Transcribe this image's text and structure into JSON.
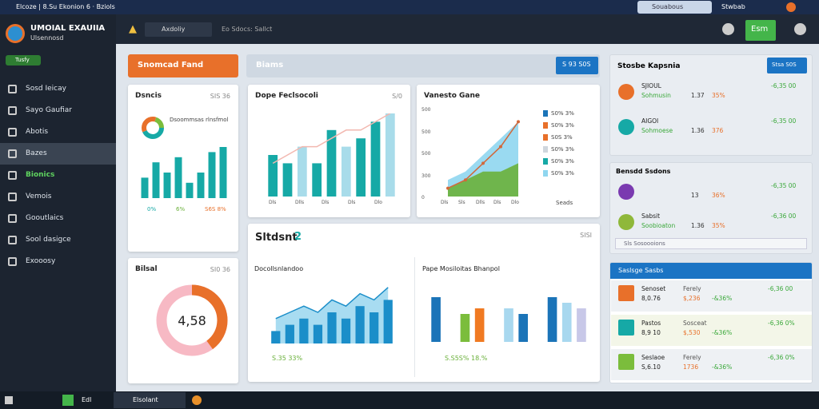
{
  "window": {
    "title": "Elcoze | 8.Su Ekonion 6 · Bziols",
    "search": "Souabous",
    "user": "Stwbab"
  },
  "sidebar": {
    "brand": "UMOIAL EXAUIIA",
    "subtitle": "Ulsennosd",
    "badge": "Tusfy",
    "items": [
      "Sosd Ieicay",
      "Sayo Gaufiar",
      "Abotis",
      "Bazes",
      "Bionics",
      "Vemois",
      "Gooutlaics",
      "Sool dasigce",
      "Exooosy"
    ]
  },
  "toolbar": {
    "field": "Axdoliy",
    "crumb": "Eo Sdocs: Sallct",
    "button": "Esm"
  },
  "header": {
    "primary": "Snomcad Fand",
    "section": "Biams",
    "action": "S 93 S0S"
  },
  "cards": {
    "a": {
      "title": "Dsncis",
      "meta": "SIS 36",
      "note": "Dsoommsas rlnsfmol",
      "legend": [
        "0%",
        "6%",
        "S6S 8%"
      ],
      "chart": {
        "ylim": [
          0,
          10
        ],
        "series": [
          {
            "kind": "bar",
            "color": "#16a9a6",
            "values": [
              4,
              7,
              5,
              8,
              3,
              5,
              9,
              10
            ]
          }
        ]
      }
    },
    "b": {
      "title": "Dope Feclsocoli",
      "meta": "S/0",
      "xlabels": [
        "Dls",
        "Dlls",
        "Dls",
        "Dls",
        "Dlo"
      ],
      "chart": {
        "ylim": [
          0,
          10
        ],
        "series": [
          {
            "kind": "bar",
            "color": "#16a9a6",
            "values": [
              5,
              4,
              6,
              4,
              8,
              6,
              7,
              9,
              10
            ]
          },
          {
            "kind": "line",
            "color": "#f2b8b0",
            "values": [
              4,
              5,
              6,
              6,
              7,
              8,
              8,
              9,
              10
            ]
          }
        ]
      }
    },
    "c": {
      "title": "Vanesto Gane",
      "yticks": [
        "500",
        "500",
        "500",
        "300",
        "0"
      ],
      "xlabels": [
        "Dls",
        "Sls",
        "Dlls",
        "Dls",
        "Dlo"
      ],
      "legend": [
        "S0% 3%",
        "S0% 3%",
        "S0S 3%",
        "S0% 3%",
        "S0% 3%",
        "S0% 3%"
      ],
      "footer": "Seads",
      "chart": {
        "ylim": [
          0,
          10
        ],
        "series": [
          {
            "kind": "area",
            "color": "#8fd6ef",
            "values": [
              2,
              3,
              5,
              7,
              9
            ]
          },
          {
            "kind": "area",
            "color": "#6ab03a",
            "values": [
              1,
              2,
              3,
              3,
              4
            ]
          },
          {
            "kind": "line",
            "color": "#d2683a",
            "values": [
              1,
              2,
              4,
              6,
              9
            ]
          }
        ]
      }
    },
    "d": {
      "title": "Bilsal",
      "meta": "SI0 36",
      "center": "4,58",
      "share": 40
    },
    "e": {
      "title": "Sltdsnt",
      "badge": "2",
      "meta": "SISI",
      "left": {
        "title": "Docollsnlandoo",
        "footer": "S.35 33%",
        "chart": {
          "ylim": [
            0,
            10
          ],
          "series": [
            {
              "kind": "area",
              "color": "#9fd8f0",
              "values": [
                4,
                5,
                6,
                5,
                7,
                6,
                8,
                7,
                9
              ]
            },
            {
              "kind": "bar",
              "color": "#1b8ec9",
              "values": [
                2,
                3,
                4,
                3,
                5,
                4,
                6,
                5,
                7
              ]
            },
            {
              "kind": "line",
              "color": "#1b8ec9",
              "values": [
                4,
                5,
                6,
                5,
                7,
                6,
                8,
                7,
                9
              ]
            }
          ]
        }
      },
      "right": {
        "title": "Pape Mosiloitas Bhanpol",
        "footer": "S.S5S% 18.%",
        "chart": {
          "ylim": [
            0,
            10
          ],
          "series": [
            {
              "kind": "bar",
              "color": "#1b74b8",
              "values": [
                8,
                0,
                5,
                6,
                0,
                6,
                5,
                0,
                8,
                7,
                6
              ]
            }
          ]
        },
        "colors": [
          "#1b74b8",
          "#ffffff",
          "#7bbd3c",
          "#f07a22",
          "#ffffff",
          "#a8d8ef",
          "#1b74b8",
          "#ffffff",
          "#1b74b8",
          "#a8d8ef",
          "#c8c8e8"
        ]
      }
    }
  },
  "panels": {
    "p1": {
      "title": "Stosbe Kapsnia",
      "action": "Stsa S0S",
      "items": [
        {
          "name": "SJIOUL",
          "sub": "Sohmusin",
          "tag": "Sdl Stids",
          "value": "1.37",
          "pct": "35%",
          "change": "-6,35 00"
        },
        {
          "name": "AIGOI",
          "sub": "Sohmoese",
          "tag": "Sdl Stids",
          "value": "1.36",
          "pct": "376",
          "change": "-6,35 00"
        }
      ]
    },
    "p2": {
      "title": "Bensdd Ssdons",
      "items": [
        {
          "name": "",
          "sub": "",
          "value": "13",
          "pct": "36%",
          "change": "-6,35 00"
        },
        {
          "name": "Sabsit",
          "sub": "Soobioaton",
          "value": "1.36",
          "pct": "35%",
          "change": "-6,36 00"
        }
      ],
      "search": "Sls Sosoooions"
    },
    "p3": {
      "title": "Saslsge Sasbs",
      "items": [
        {
          "name": "Senoset",
          "sub": "8,0.76",
          "label": "Ferely",
          "value": "$,236",
          "pct": "-&36%",
          "change": "-6,36 00"
        },
        {
          "name": "Pastos",
          "sub": "8,9 10",
          "label": "Sosceat",
          "value": "$,530",
          "pct": "-&36%",
          "change": "-6,36 0%"
        },
        {
          "name": "Seslaoe",
          "sub": "S,6.10",
          "label": "Ferely",
          "value": "1736",
          "pct": "-&36%",
          "change": "-6,36 0%"
        }
      ]
    }
  },
  "taskbar": {
    "app1": "Edl",
    "app2": "Elsolant"
  }
}
